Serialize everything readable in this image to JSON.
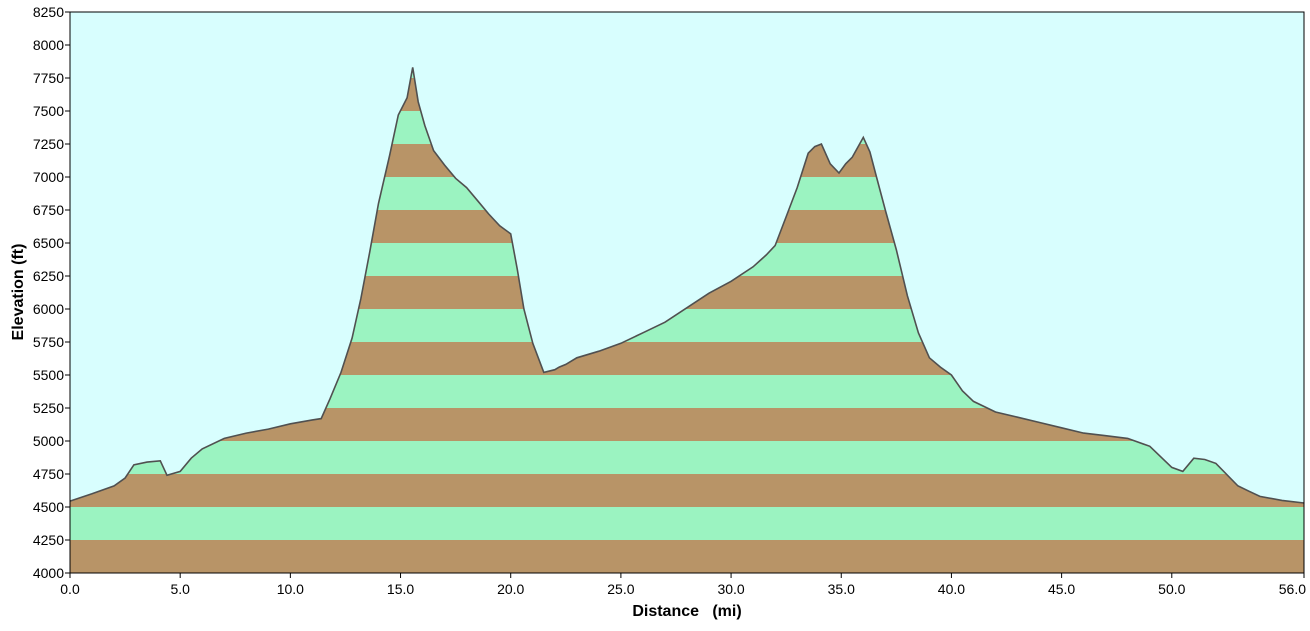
{
  "chart_data": {
    "type": "area",
    "title": "",
    "xlabel": "Distance   (mi)",
    "ylabel": "Elevation (ft)",
    "xlim": [
      0,
      56
    ],
    "ylim": [
      4000,
      8250
    ],
    "x_ticks": [
      "0.0",
      "5.0",
      "10.0",
      "15.0",
      "20.0",
      "25.0",
      "30.0",
      "35.0",
      "40.0",
      "45.0",
      "50.0",
      "56.0"
    ],
    "x_tick_values": [
      0,
      5,
      10,
      15,
      20,
      25,
      30,
      35,
      40,
      45,
      50,
      56
    ],
    "y_ticks": [
      "4000",
      "4250",
      "4500",
      "4750",
      "5000",
      "5250",
      "5500",
      "5750",
      "6000",
      "6250",
      "6500",
      "6750",
      "7000",
      "7250",
      "7500",
      "7750",
      "8000",
      "8250"
    ],
    "band_step": 250,
    "grid": false,
    "colors": {
      "background": "#d8fefe",
      "band_light": "#9bf3c1",
      "band_dark": "#b89467",
      "profile_line": "#505050",
      "frame": "#000000"
    },
    "series": [
      {
        "x": [
          0,
          1,
          2,
          2.5,
          2.9,
          3.5,
          4.1,
          4.4,
          5.0,
          5.5,
          6.0,
          7.0,
          8.0,
          9.0,
          10.0,
          11.0,
          11.4,
          11.8,
          12.3,
          12.8,
          13.2,
          13.6,
          14.0,
          14.5,
          14.9,
          15.3,
          15.55,
          15.8,
          16.1,
          16.5,
          17.0,
          17.5,
          18.0,
          18.5,
          19.0,
          19.5,
          20.0,
          20.3,
          20.6,
          21.0,
          21.5,
          22.0,
          22.2,
          22.5,
          23.0,
          24.0,
          25.0,
          26.0,
          27.0,
          28.0,
          29.0,
          30.0,
          31.0,
          31.6,
          32.0,
          32.5,
          33.0,
          33.5,
          33.8,
          34.1,
          34.5,
          34.9,
          35.2,
          35.5,
          36.0,
          36.3,
          36.6,
          37.0,
          37.5,
          38.0,
          38.5,
          39.0,
          39.5,
          40.0,
          40.5,
          41.0,
          42.0,
          43.0,
          44.0,
          45.0,
          46.0,
          47.0,
          48.0,
          49.0,
          50.0,
          50.5,
          51.0,
          51.5,
          52.0,
          53.0,
          53.5,
          54.0,
          55.0,
          56.0
        ],
        "values": [
          4545,
          4600,
          4660,
          4720,
          4820,
          4840,
          4850,
          4740,
          4770,
          4870,
          4940,
          5020,
          5060,
          5090,
          5130,
          5160,
          5170,
          5320,
          5520,
          5780,
          6080,
          6430,
          6800,
          7160,
          7470,
          7600,
          7830,
          7570,
          7390,
          7200,
          7090,
          6990,
          6920,
          6820,
          6720,
          6630,
          6570,
          6300,
          6000,
          5740,
          5520,
          5540,
          5560,
          5580,
          5630,
          5680,
          5740,
          5820,
          5900,
          6010,
          6120,
          6210,
          6320,
          6410,
          6480,
          6700,
          6920,
          7180,
          7230,
          7250,
          7100,
          7030,
          7100,
          7150,
          7300,
          7190,
          7000,
          6750,
          6450,
          6100,
          5820,
          5630,
          5560,
          5500,
          5380,
          5300,
          5220,
          5180,
          5140,
          5100,
          5060,
          5040,
          5020,
          4960,
          4800,
          4770,
          4870,
          4860,
          4830,
          4660,
          4620,
          4580,
          4550,
          4530
        ]
      }
    ]
  }
}
